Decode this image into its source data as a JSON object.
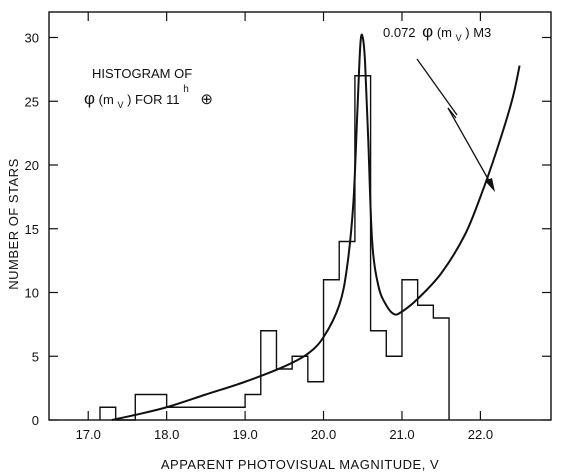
{
  "chart_data": {
    "type": "line",
    "xlabel": "APPARENT PHOTOVISUAL MAGNITUDE, V",
    "ylabel": "NUMBER OF STARS",
    "xlim": [
      16.5,
      22.9
    ],
    "ylim": [
      0,
      32
    ],
    "x_ticks": [
      17.0,
      18.0,
      19.0,
      20.0,
      21.0,
      22.0
    ],
    "x_tick_labels": [
      "17.0",
      "18.0",
      "19.0",
      "20.0",
      "21.0",
      "22.0"
    ],
    "y_ticks": [
      0,
      5,
      10,
      15,
      20,
      25,
      30
    ],
    "y_tick_labels": [
      "0",
      "5",
      "10",
      "15",
      "20",
      "25",
      "30"
    ],
    "grid": false,
    "legend": "none",
    "annotations": {
      "histogram_line1": "HISTOGRAM OF",
      "histogram_line2_phi": "φ",
      "histogram_line2_open": "(m",
      "histogram_line2_sub": "V",
      "histogram_line2_close": ")  FOR  11",
      "histogram_line2_sup": "h",
      "histogram_line2_symbol": "⊕",
      "curve_label_coef": "0.072",
      "curve_label_phi": "φ",
      "curve_label_open": "(m",
      "curve_label_sub": "V",
      "curve_label_close": ") M3"
    },
    "series": [
      {
        "type": "step",
        "bins": [
          {
            "x0": 17.15,
            "x1": 17.35,
            "count": 1
          },
          {
            "x0": 17.35,
            "x1": 17.6,
            "count": 0
          },
          {
            "x0": 17.6,
            "x1": 18.0,
            "count": 2
          },
          {
            "x0": 18.0,
            "x1": 19.0,
            "count": 1
          },
          {
            "x0": 19.0,
            "x1": 19.2,
            "count": 2
          },
          {
            "x0": 19.2,
            "x1": 19.4,
            "count": 7
          },
          {
            "x0": 19.4,
            "x1": 19.6,
            "count": 4
          },
          {
            "x0": 19.6,
            "x1": 19.8,
            "count": 5
          },
          {
            "x0": 19.8,
            "x1": 20.0,
            "count": 3
          },
          {
            "x0": 20.0,
            "x1": 20.2,
            "count": 11
          },
          {
            "x0": 20.2,
            "x1": 20.4,
            "count": 14
          },
          {
            "x0": 20.4,
            "x1": 20.6,
            "count": 27
          },
          {
            "x0": 20.6,
            "x1": 20.8,
            "count": 7
          },
          {
            "x0": 20.8,
            "x1": 21.0,
            "count": 5
          },
          {
            "x0": 21.0,
            "x1": 21.2,
            "count": 11
          },
          {
            "x0": 21.2,
            "x1": 21.4,
            "count": 9
          },
          {
            "x0": 21.4,
            "x1": 21.6,
            "count": 8
          }
        ]
      },
      {
        "type": "line",
        "x": [
          17.3,
          17.6,
          18.0,
          18.5,
          19.0,
          19.5,
          19.8,
          20.0,
          20.2,
          20.3,
          20.38,
          20.43,
          20.47,
          20.5,
          20.53,
          20.57,
          20.62,
          20.7,
          20.8,
          20.9,
          21.0,
          21.2,
          21.5,
          21.8,
          22.0,
          22.2,
          22.4,
          22.5
        ],
        "y": [
          0,
          0.4,
          1.0,
          2.0,
          3.0,
          4.2,
          5.2,
          6.5,
          9.0,
          12.0,
          17.0,
          24.0,
          29.5,
          30.0,
          28.0,
          22.0,
          14.0,
          10.5,
          9.0,
          8.3,
          8.5,
          9.5,
          11.5,
          14.5,
          17.5,
          21.0,
          25.0,
          27.8
        ]
      }
    ]
  }
}
